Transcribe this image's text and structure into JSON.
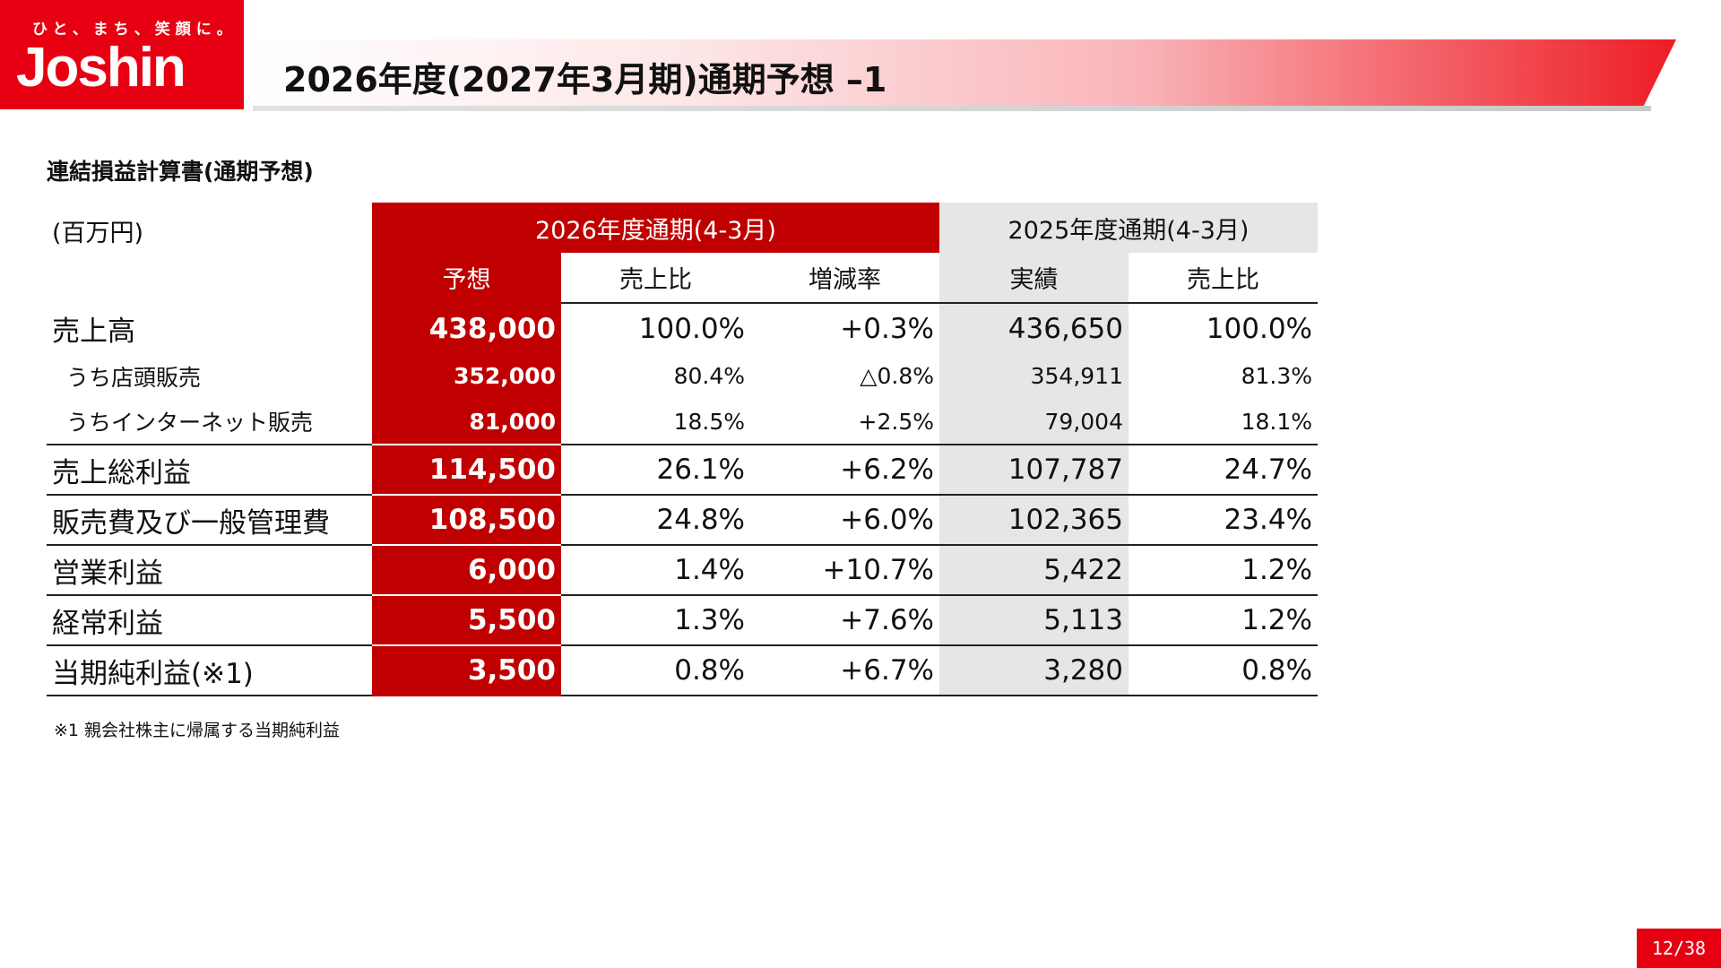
{
  "logo": {
    "tagline": "ひと、まち、笑顔に。",
    "name": "Joshin",
    "brand_color": "#e60012"
  },
  "title": "2026年度(2027年3月期)通期予想 –1",
  "section_heading": "連結損益計算書(通期予想)",
  "table": {
    "unit": "(百万円)",
    "group_current": "2026年度通期(4-3月)",
    "group_previous": "2025年度通期(4-3月)",
    "columns": [
      "予想",
      "売上比",
      "増減率",
      "実績",
      "売上比"
    ],
    "rows": [
      {
        "label": "売上高",
        "forecast": "438,000",
        "ratio": "100.0%",
        "change": "+0.3%",
        "actual": "436,650",
        "prev_ratio": "100.0%"
      },
      {
        "label": "うち店頭販売",
        "forecast": "352,000",
        "ratio": "80.4%",
        "change": "△0.8%",
        "actual": "354,911",
        "prev_ratio": "81.3%"
      },
      {
        "label": "うちインターネット販売",
        "forecast": "81,000",
        "ratio": "18.5%",
        "change": "+2.5%",
        "actual": "79,004",
        "prev_ratio": "18.1%"
      },
      {
        "label": "売上総利益",
        "forecast": "114,500",
        "ratio": "26.1%",
        "change": "+6.2%",
        "actual": "107,787",
        "prev_ratio": "24.7%"
      },
      {
        "label": "販売費及び一般管理費",
        "forecast": "108,500",
        "ratio": "24.8%",
        "change": "+6.0%",
        "actual": "102,365",
        "prev_ratio": "23.4%"
      },
      {
        "label": "営業利益",
        "forecast": "6,000",
        "ratio": "1.4%",
        "change": "+10.7%",
        "actual": "5,422",
        "prev_ratio": "1.2%"
      },
      {
        "label": "経常利益",
        "forecast": "5,500",
        "ratio": "1.3%",
        "change": "+7.6%",
        "actual": "5,113",
        "prev_ratio": "1.2%"
      },
      {
        "label": "当期純利益(※1)",
        "forecast": "3,500",
        "ratio": "0.8%",
        "change": "+6.7%",
        "actual": "3,280",
        "prev_ratio": "0.8%"
      }
    ]
  },
  "footnote": "※1  親会社株主に帰属する当期純利益",
  "page_number": "12/38",
  "colors": {
    "forecast_column": "#c00000",
    "previous_column": "#e6e6e6"
  }
}
